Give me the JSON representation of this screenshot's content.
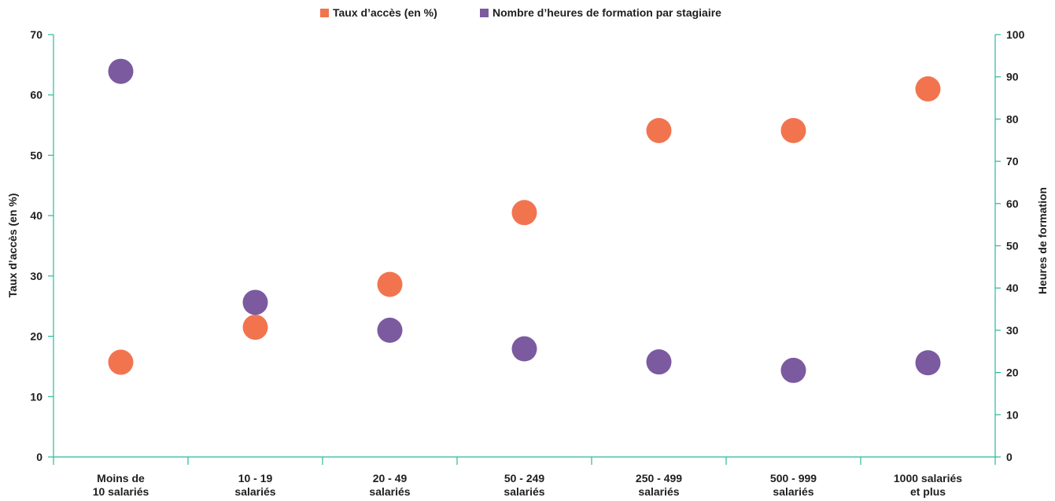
{
  "colors": {
    "axis": "#2bb99a",
    "access": "#f2744f",
    "hours": "#7b5a9f",
    "text": "#1e1e1e"
  },
  "chart_data": {
    "type": "scatter",
    "categories": [
      [
        "Moins de",
        "10 salariés"
      ],
      [
        "10 - 19",
        "salariés"
      ],
      [
        "20 - 49",
        "salariés"
      ],
      [
        "50 - 249",
        "salariés"
      ],
      [
        "250 - 499",
        "salariés"
      ],
      [
        "500 - 999",
        "salariés"
      ],
      [
        "1000 salariés",
        "et plus"
      ]
    ],
    "series": [
      {
        "name": "Taux d’accès (en %)",
        "axis": "left",
        "color": "#f2744f",
        "values": [
          15.7,
          21.5,
          28.6,
          40.5,
          54.1,
          54.1,
          61.0
        ]
      },
      {
        "name": "Nombre d’heures de formation par stagiaire",
        "axis": "right",
        "color": "#7b5a9f",
        "values": [
          91.3,
          36.6,
          30.0,
          25.6,
          22.5,
          20.5,
          22.3
        ]
      }
    ],
    "ylabel_left": "Taux d’accès (en %)",
    "ylabel_right": "Heures de formation",
    "ylim_left": [
      0,
      70
    ],
    "yticks_left": [
      0,
      10,
      20,
      30,
      40,
      50,
      60,
      70
    ],
    "ylim_right": [
      0,
      100
    ],
    "yticks_right": [
      0,
      10,
      20,
      30,
      40,
      50,
      60,
      70,
      80,
      90,
      100
    ],
    "legend_position": "top-center",
    "grid": false
  }
}
